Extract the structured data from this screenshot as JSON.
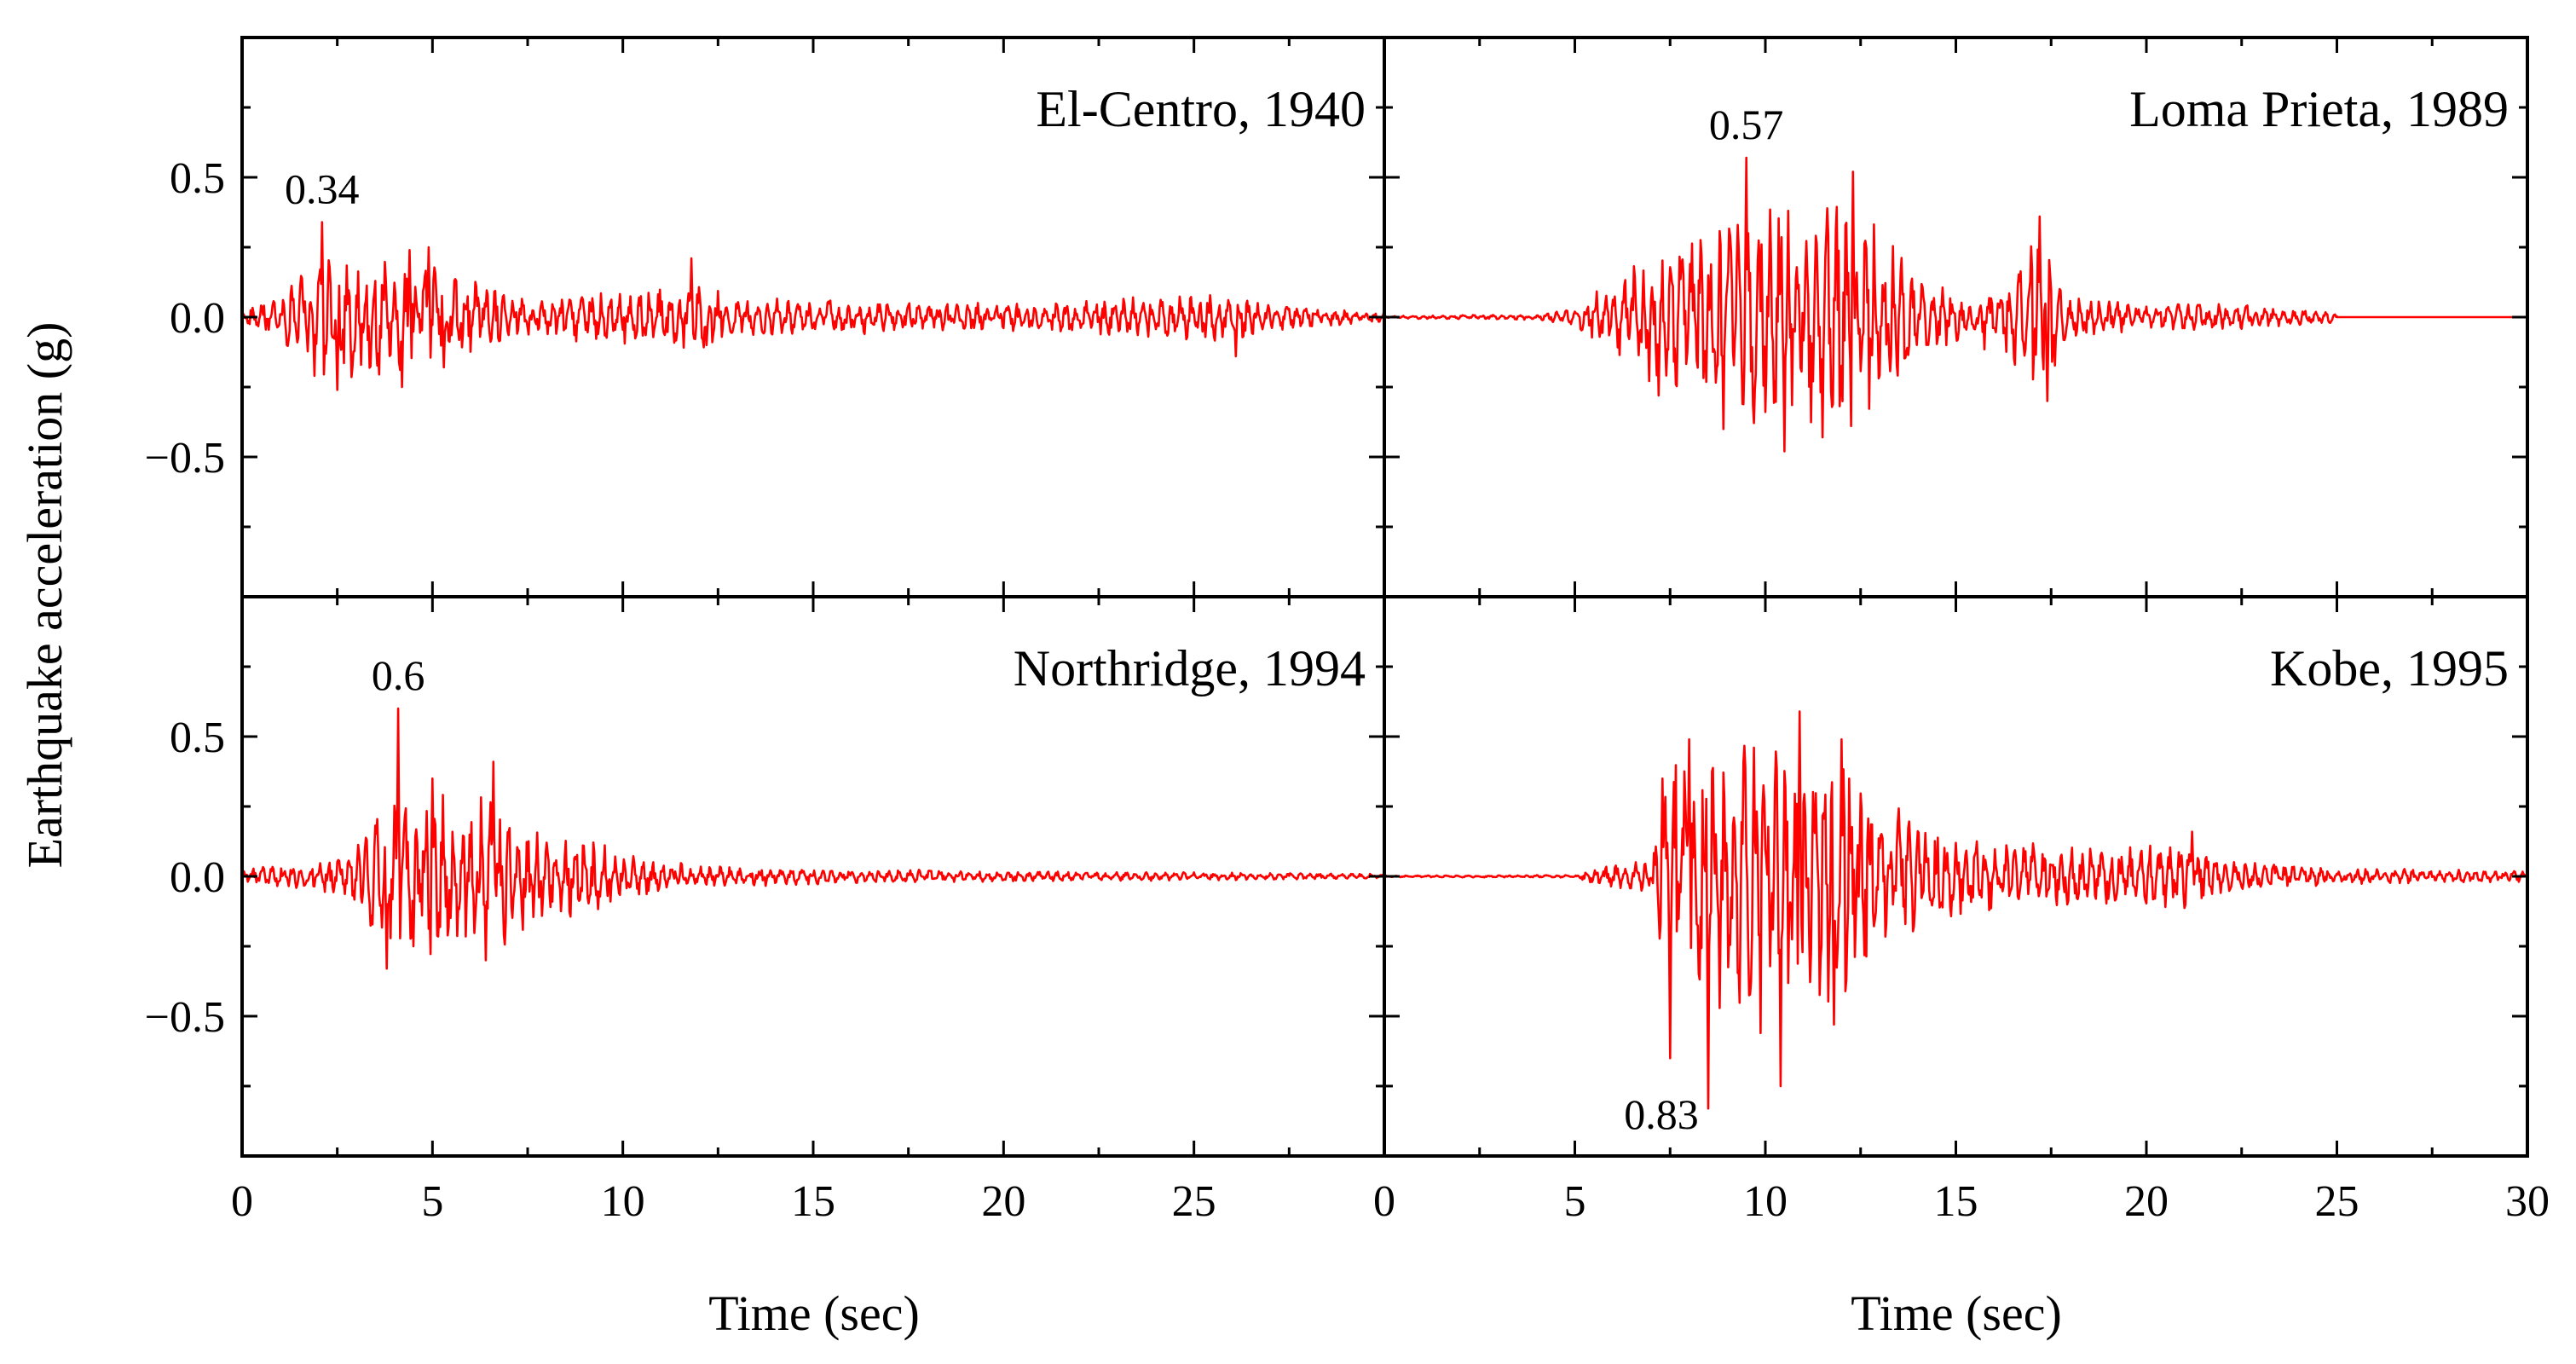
{
  "chart_data": {
    "type": "line",
    "ylabel": "Earthquake acceleration (g)",
    "xlabel": "Time (sec)",
    "xlim": [
      0,
      30
    ],
    "ylim": [
      -1.0,
      1.0
    ],
    "x_ticks": [
      0,
      5,
      10,
      15,
      20,
      25,
      30
    ],
    "y_ticks": [
      0.5,
      0.0,
      -0.5
    ],
    "x_tick_labels_left": [
      "0",
      "5",
      "10",
      "15",
      "20",
      "25"
    ],
    "x_tick_labels_right": [
      "0",
      "5",
      "10",
      "15",
      "20",
      "25",
      "30"
    ],
    "y_tick_labels": [
      "0.5",
      "0.0",
      "−0.5"
    ],
    "line_color": "#ff0000",
    "panels": [
      {
        "id": "el-centro",
        "title": "El-Centro, 1940",
        "peak_label": "0.34",
        "peak": {
          "t": 2.1,
          "a": 0.34
        },
        "envelope": [
          [
            0,
            0.03
          ],
          [
            1,
            0.08
          ],
          [
            1.5,
            0.15
          ],
          [
            2,
            0.22
          ],
          [
            2.5,
            0.25
          ],
          [
            3,
            0.22
          ],
          [
            4,
            0.2
          ],
          [
            5,
            0.2
          ],
          [
            6,
            0.15
          ],
          [
            7,
            0.08
          ],
          [
            8,
            0.06
          ],
          [
            9,
            0.1
          ],
          [
            10,
            0.1
          ],
          [
            11,
            0.1
          ],
          [
            12,
            0.12
          ],
          [
            13,
            0.07
          ],
          [
            15,
            0.07
          ],
          [
            17,
            0.06
          ],
          [
            20,
            0.05
          ],
          [
            22,
            0.06
          ],
          [
            24,
            0.08
          ],
          [
            26,
            0.1
          ],
          [
            27,
            0.05
          ],
          [
            30,
            0.02
          ]
        ],
        "spikes": [
          [
            2.1,
            0.34
          ],
          [
            2.5,
            -0.26
          ],
          [
            1.9,
            -0.21
          ],
          [
            4.2,
            -0.25
          ],
          [
            4.4,
            0.24
          ],
          [
            4.9,
            0.25
          ],
          [
            5.3,
            -0.18
          ],
          [
            11.8,
            0.21
          ],
          [
            12.2,
            -0.1
          ],
          [
            26.1,
            -0.14
          ]
        ],
        "start": 0,
        "end": 30
      },
      {
        "id": "loma-prieta",
        "title": "Loma Prieta, 1989",
        "peak_label": "0.57",
        "peak": {
          "t": 9.5,
          "a": 0.57
        },
        "envelope": [
          [
            0,
            0.005
          ],
          [
            4,
            0.01
          ],
          [
            5,
            0.03
          ],
          [
            5.5,
            0.1
          ],
          [
            6,
            0.15
          ],
          [
            6.7,
            0.2
          ],
          [
            7,
            0.28
          ],
          [
            8,
            0.3
          ],
          [
            9,
            0.38
          ],
          [
            10,
            0.42
          ],
          [
            11,
            0.42
          ],
          [
            12,
            0.45
          ],
          [
            13,
            0.35
          ],
          [
            14,
            0.14
          ],
          [
            15,
            0.12
          ],
          [
            16,
            0.12
          ],
          [
            16.6,
            0.22
          ],
          [
            17,
            0.3
          ],
          [
            17.5,
            0.25
          ],
          [
            18,
            0.08
          ],
          [
            20,
            0.05
          ],
          [
            22,
            0.05
          ],
          [
            24,
            0.03
          ],
          [
            25,
            0.02
          ]
        ],
        "spikes": [
          [
            9.5,
            0.57
          ],
          [
            10.5,
            -0.48
          ],
          [
            12.3,
            0.52
          ],
          [
            8.9,
            -0.4
          ],
          [
            7.2,
            -0.28
          ],
          [
            17.2,
            0.36
          ],
          [
            17.4,
            -0.3
          ],
          [
            11.5,
            -0.43
          ]
        ],
        "start": 0,
        "end": 25,
        "flat_after": 25
      },
      {
        "id": "northridge",
        "title": "Northridge, 1994",
        "peak_label": "0.6",
        "peak": {
          "t": 4.1,
          "a": 0.6
        },
        "envelope": [
          [
            0,
            0.03
          ],
          [
            2,
            0.05
          ],
          [
            3,
            0.1
          ],
          [
            3.5,
            0.25
          ],
          [
            4,
            0.3
          ],
          [
            5,
            0.3
          ],
          [
            6,
            0.3
          ],
          [
            7,
            0.25
          ],
          [
            8,
            0.15
          ],
          [
            9,
            0.15
          ],
          [
            10,
            0.08
          ],
          [
            12,
            0.04
          ],
          [
            15,
            0.03
          ],
          [
            20,
            0.02
          ],
          [
            25,
            0.015
          ],
          [
            30,
            0.01
          ]
        ],
        "spikes": [
          [
            4.1,
            0.6
          ],
          [
            3.8,
            -0.33
          ],
          [
            5.0,
            0.35
          ],
          [
            6.6,
            0.41
          ],
          [
            6.4,
            -0.3
          ],
          [
            4.5,
            -0.25
          ]
        ],
        "start": 0,
        "end": 30
      },
      {
        "id": "kobe",
        "title": "Kobe, 1995",
        "peak_label": "0.83",
        "peak": {
          "t": 8.5,
          "a": -0.83
        },
        "envelope": [
          [
            0,
            0.003
          ],
          [
            5,
            0.005
          ],
          [
            5.5,
            0.03
          ],
          [
            6,
            0.04
          ],
          [
            7,
            0.06
          ],
          [
            7.3,
            0.3
          ],
          [
            7.6,
            0.5
          ],
          [
            8,
            0.55
          ],
          [
            9,
            0.5
          ],
          [
            10,
            0.6
          ],
          [
            11,
            0.55
          ],
          [
            12,
            0.5
          ],
          [
            13,
            0.3
          ],
          [
            14,
            0.2
          ],
          [
            15,
            0.15
          ],
          [
            17,
            0.12
          ],
          [
            19,
            0.1
          ],
          [
            21,
            0.12
          ],
          [
            22,
            0.06
          ],
          [
            25,
            0.03
          ],
          [
            30,
            0.02
          ]
        ],
        "spikes": [
          [
            8.5,
            -0.83
          ],
          [
            10.4,
            -0.75
          ],
          [
            7.5,
            -0.65
          ],
          [
            10.9,
            0.59
          ],
          [
            8.0,
            0.49
          ],
          [
            11.8,
            -0.53
          ],
          [
            12.0,
            0.49
          ],
          [
            9.7,
            0.46
          ],
          [
            7.3,
            0.35
          ],
          [
            21.2,
            0.16
          ]
        ],
        "start": 0,
        "end": 30
      }
    ]
  }
}
